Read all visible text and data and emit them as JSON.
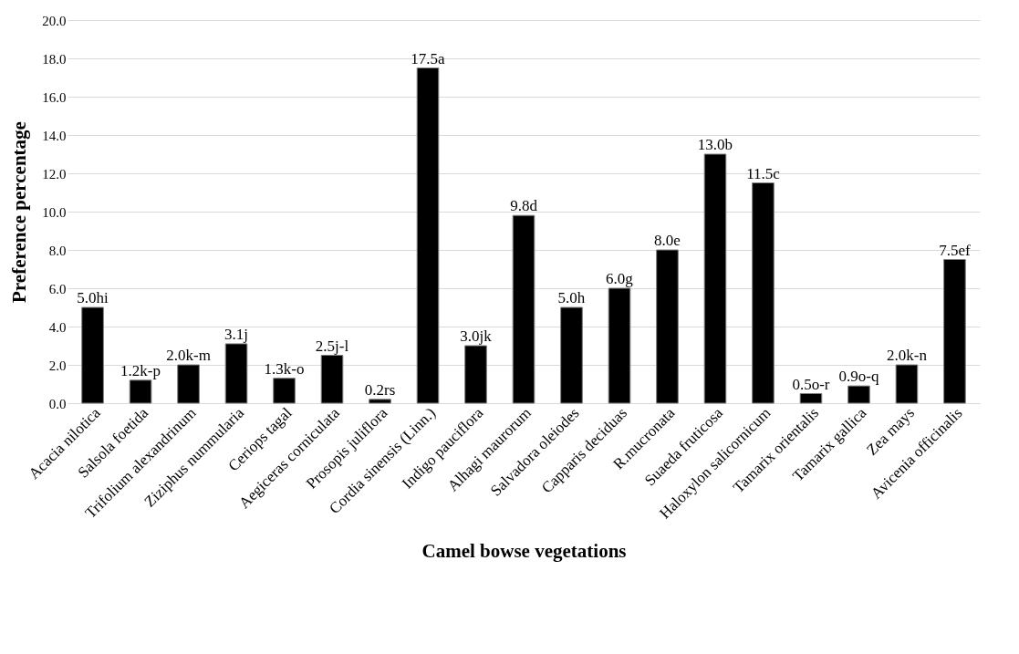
{
  "chart_data": {
    "type": "bar",
    "xlabel": "Camel bowse vegetations",
    "ylabel": "Preference percentage",
    "categories": [
      "Acacia nilotica",
      "Salsola foetida",
      "Trifolium alexandrinum",
      "Ziziphus nummularia",
      "Ceriops tagal",
      "Aegiceras corniculata",
      "Prosopis juliflora",
      "Cordia sinensis (Linn.)",
      "Indigo pauciflora",
      "Alhagi maurorum",
      "Salvadora oleiodes",
      "Capparis deciduas",
      "R.mucronata",
      "Suaeda fruticosa",
      "Haloxylon salicornicum",
      "Tamarix orientalis",
      "Tamarix gallica",
      "Zea mays",
      "Avicenia officinalis"
    ],
    "values": [
      5.0,
      1.2,
      2.0,
      3.1,
      1.3,
      2.5,
      0.2,
      17.5,
      3.0,
      9.8,
      5.0,
      6.0,
      8.0,
      13.0,
      11.5,
      0.5,
      0.9,
      2.0,
      7.5
    ],
    "value_labels": [
      "5.0hi",
      "1.2k-p",
      "2.0k-m",
      "3.1j",
      "1.3k-o",
      "2.5j-l",
      "0.2rs",
      "17.5a",
      "3.0jk",
      "9.8d",
      "5.0h",
      "6.0g",
      "8.0e",
      "13.0b",
      "11.5c",
      "0.5o-r",
      "0.9o-q",
      "2.0k-n",
      "7.5ef"
    ],
    "color": "#000000",
    "ylim": [
      0,
      20
    ],
    "yticks": [
      {
        "value": 0,
        "label": "0.0"
      },
      {
        "value": 2,
        "label": "2.0"
      },
      {
        "value": 4,
        "label": "4.0"
      },
      {
        "value": 6,
        "label": "6.0"
      },
      {
        "value": 8,
        "label": "8.0"
      },
      {
        "value": 10,
        "label": "10.0"
      },
      {
        "value": 12,
        "label": "12.0"
      },
      {
        "value": 14,
        "label": "14.0"
      },
      {
        "value": 16,
        "label": "16.0"
      },
      {
        "value": 18,
        "label": "18.0"
      },
      {
        "value": 20,
        "label": "20.0"
      }
    ],
    "grid": "y"
  }
}
